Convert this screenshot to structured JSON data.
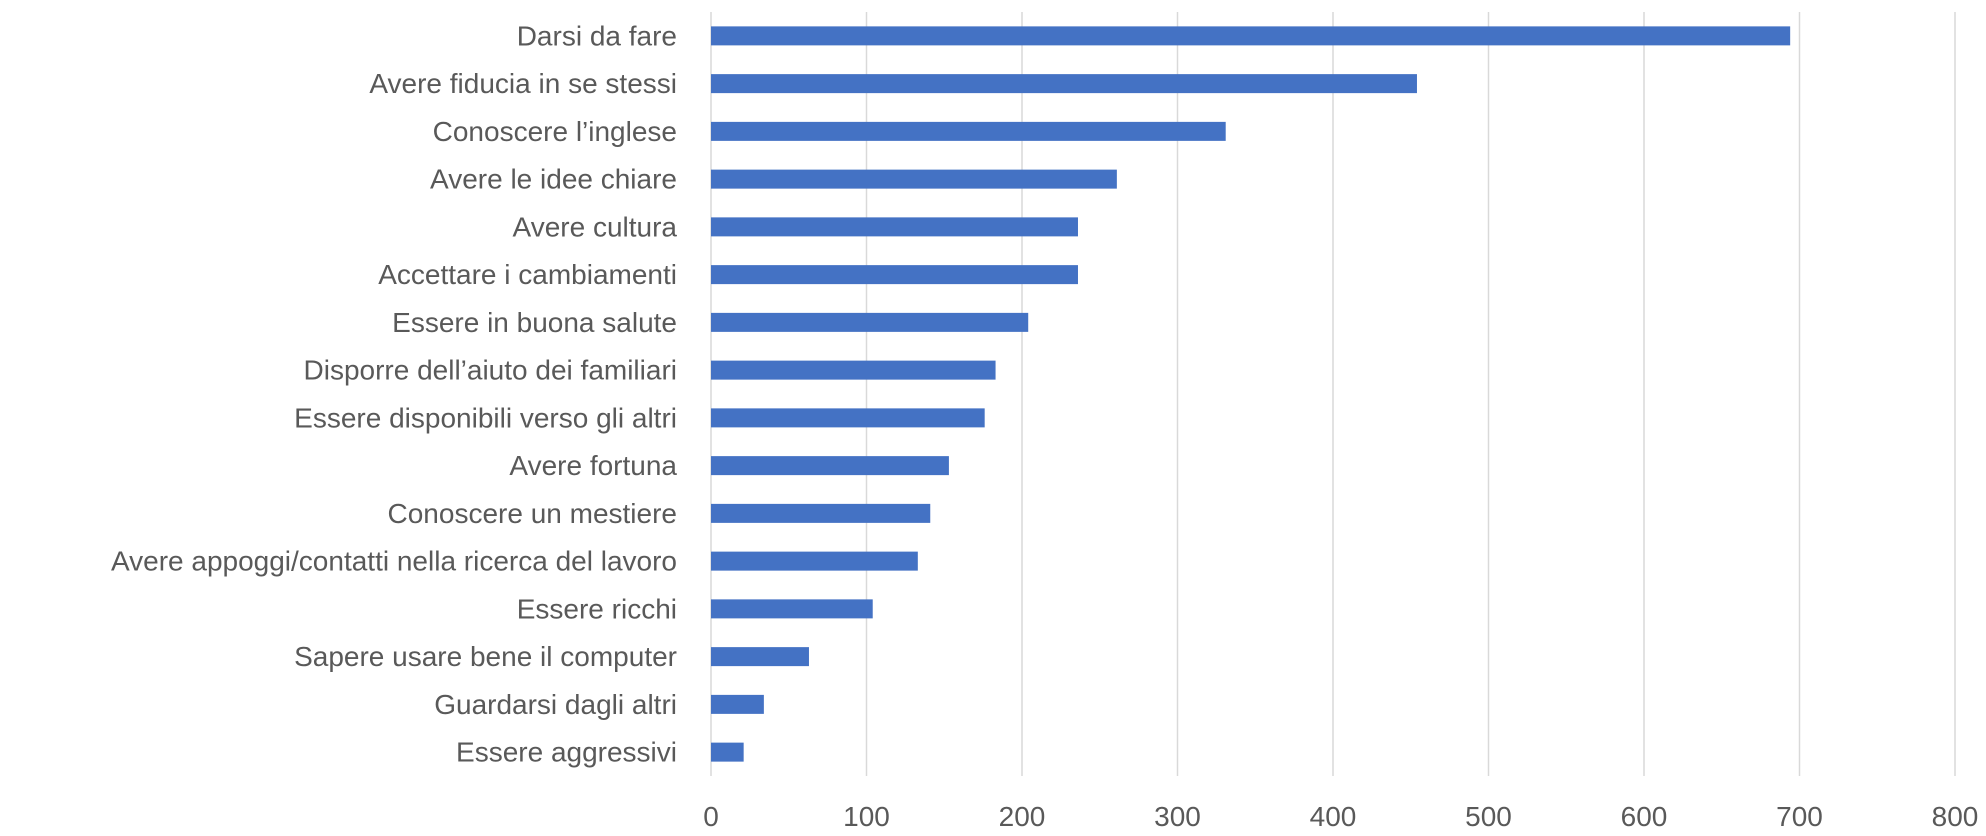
{
  "chart_data": {
    "type": "bar",
    "orientation": "horizontal",
    "categories": [
      "Darsi da fare",
      "Avere fiducia in se stessi",
      "Conoscere l’inglese",
      "Avere le idee chiare",
      "Avere cultura",
      "Accettare i cambiamenti",
      "Essere in buona salute",
      "Disporre dell’aiuto dei familiari",
      "Essere disponibili verso gli altri",
      "Avere fortuna",
      "Conoscere un mestiere",
      "Avere appoggi/contatti nella ricerca del lavoro",
      "Essere ricchi",
      "Sapere usare bene il computer",
      "Guardarsi dagli altri",
      "Essere aggressivi"
    ],
    "values": [
      694,
      454,
      331,
      261,
      236,
      236,
      204,
      183,
      176,
      153,
      141,
      133,
      104,
      63,
      34,
      21
    ],
    "xlim": [
      0,
      800
    ],
    "xticks": [
      0,
      100,
      200,
      300,
      400,
      500,
      600,
      700,
      800
    ],
    "xtick_labels": [
      "0",
      "100",
      "200",
      "300",
      "400",
      "500",
      "600",
      "700",
      "800"
    ],
    "title": "",
    "xlabel": "",
    "ylabel": "",
    "grid": "vertical",
    "legend": "none",
    "bar_color": "#4472C4",
    "grid_color": "#D9D9D9",
    "label_color": "#595959"
  }
}
